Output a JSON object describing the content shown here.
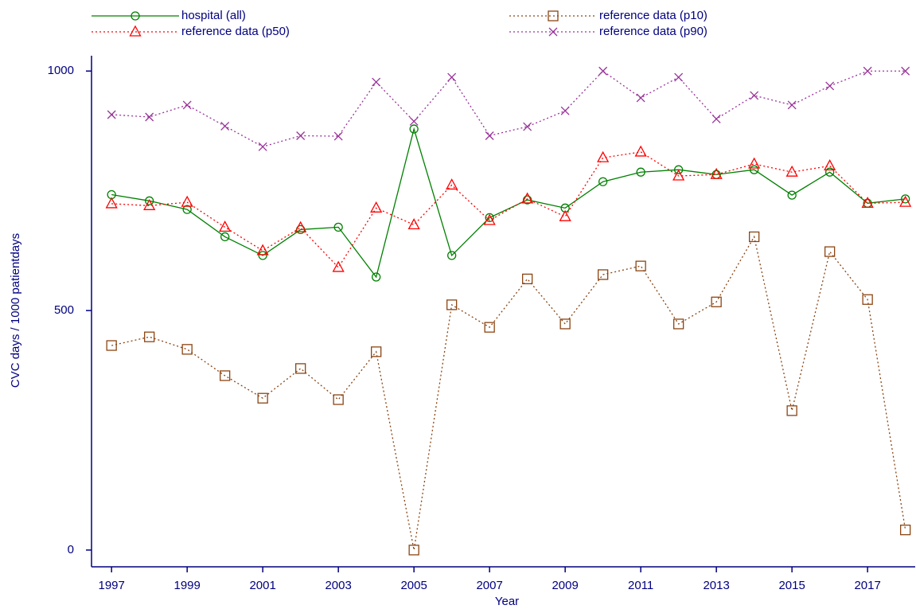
{
  "chart_data": {
    "type": "line",
    "x": [
      1997,
      1998,
      1999,
      2000,
      2001,
      2002,
      2003,
      2004,
      2005,
      2006,
      2007,
      2008,
      2009,
      2010,
      2011,
      2012,
      2013,
      2014,
      2015,
      2016,
      2017,
      2018
    ],
    "series": [
      {
        "name": "hospital (all)",
        "color": "#008000",
        "marker": "circle",
        "dash": "solid",
        "values": [
          742,
          729,
          711,
          654,
          615,
          669,
          674,
          570,
          879,
          615,
          694,
          731,
          714,
          769,
          789,
          794,
          784,
          794,
          741,
          789,
          724,
          733
        ]
      },
      {
        "name": "reference data (p10)",
        "color": "#8b4513",
        "marker": "square",
        "dash": "dotted",
        "values": [
          427,
          445,
          419,
          364,
          317,
          379,
          314,
          414,
          0,
          512,
          465,
          566,
          472,
          575,
          593,
          472,
          518,
          654,
          291,
          623,
          523,
          42
        ]
      },
      {
        "name": "reference data (p50)",
        "color": "#ff0000",
        "marker": "triangle",
        "dash": "dotted",
        "values": [
          723,
          719,
          726,
          674,
          625,
          673,
          590,
          714,
          679,
          762,
          688,
          733,
          696,
          819,
          831,
          781,
          784,
          806,
          789,
          802,
          724,
          726
        ]
      },
      {
        "name": "reference data (p90)",
        "color": "#993399",
        "marker": "x",
        "dash": "dotted",
        "values": [
          909,
          904,
          929,
          885,
          842,
          865,
          864,
          977,
          895,
          987,
          865,
          884,
          917,
          1000,
          944,
          987,
          900,
          949,
          929,
          969,
          1000,
          1000
        ]
      }
    ],
    "xlabel": "Year",
    "ylabel": "CVC days / 1000 patientdays",
    "xlim": [
      1996.47,
      2018.26
    ],
    "ylim": [
      -35,
      1032
    ],
    "xticks": [
      1997,
      1999,
      2001,
      2003,
      2005,
      2007,
      2009,
      2011,
      2013,
      2015,
      2017
    ],
    "yticks": [
      0,
      500,
      1000
    ]
  }
}
